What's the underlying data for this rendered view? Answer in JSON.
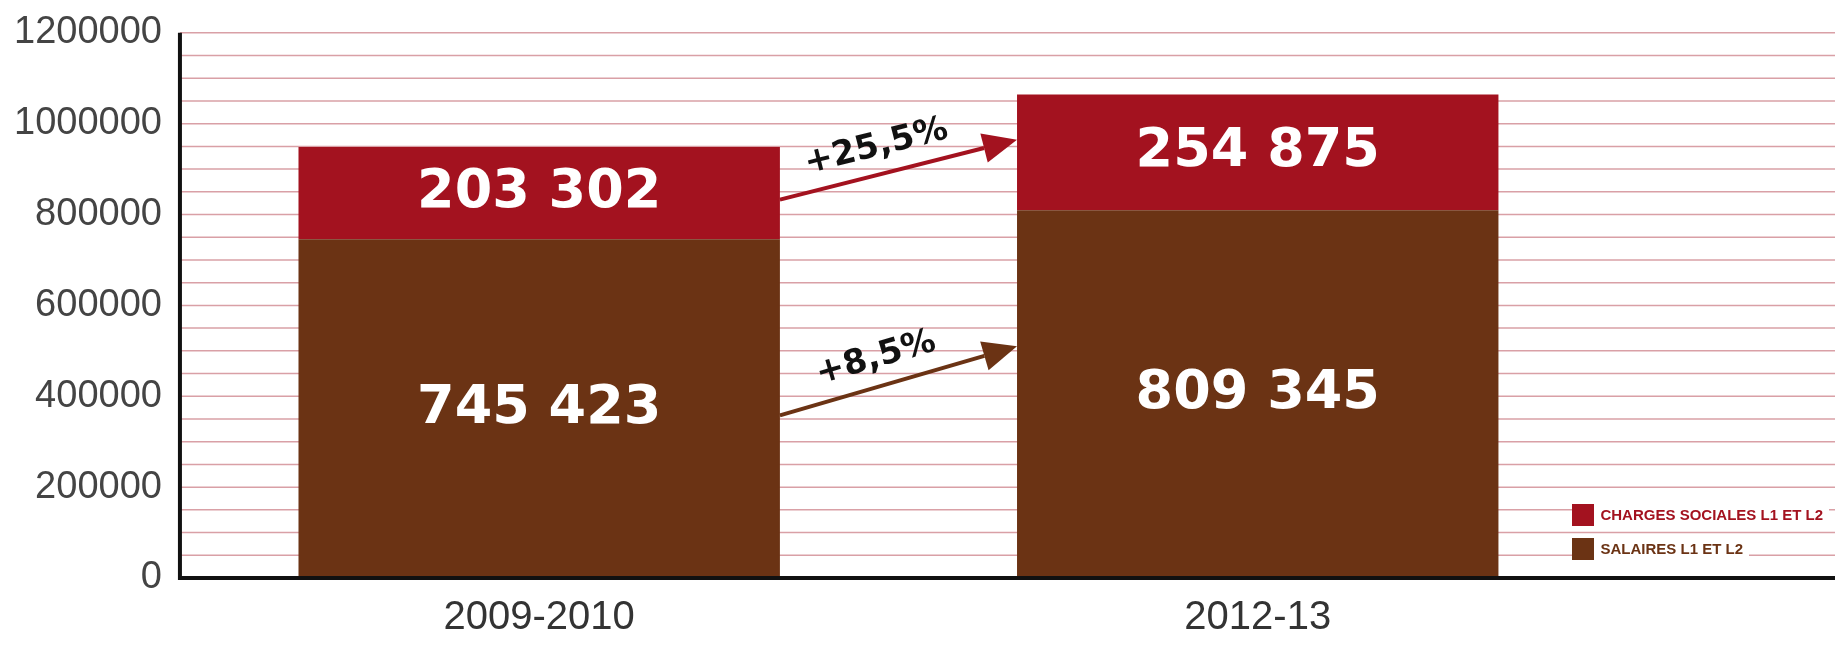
{
  "chart_data": {
    "type": "bar",
    "stacked": true,
    "categories": [
      "2009-2010",
      "2012-13"
    ],
    "series": [
      {
        "name": "SALAIRES L1 ET L2",
        "color": "#6b3314",
        "values": [
          745423,
          809345
        ],
        "value_labels": [
          "745 423",
          "809 345"
        ]
      },
      {
        "name": "CHARGES SOCIALES L1 ET L2",
        "color": "#a3121f",
        "values": [
          203302,
          254875
        ],
        "value_labels": [
          "203 302",
          "254 875"
        ]
      }
    ],
    "ylim": [
      0,
      1200000
    ],
    "yticks": [
      0,
      {
        "value": 50000,
        "label": null
      },
      {
        "value": 100000,
        "label": null
      },
      {
        "value": 150000,
        "label": null
      },
      200000,
      {
        "value": 250000,
        "label": null
      },
      {
        "value": 300000,
        "label": null
      },
      {
        "value": 350000,
        "label": null
      },
      400000,
      {
        "value": 450000,
        "label": null
      },
      {
        "value": 500000,
        "label": null
      },
      {
        "value": 550000,
        "label": null
      },
      600000,
      {
        "value": 650000,
        "label": null
      },
      {
        "value": 700000,
        "label": null
      },
      {
        "value": 750000,
        "label": null
      },
      800000,
      {
        "value": 850000,
        "label": null
      },
      {
        "value": 900000,
        "label": null
      },
      {
        "value": 950000,
        "label": null
      },
      1000000,
      {
        "value": 1050000,
        "label": null
      },
      {
        "value": 1100000,
        "label": null
      },
      {
        "value": 1150000,
        "label": null
      },
      1200000
    ],
    "grid": "y",
    "legend": "bottom right",
    "annotations": [
      "+25,5%",
      "+8,5%"
    ]
  }
}
